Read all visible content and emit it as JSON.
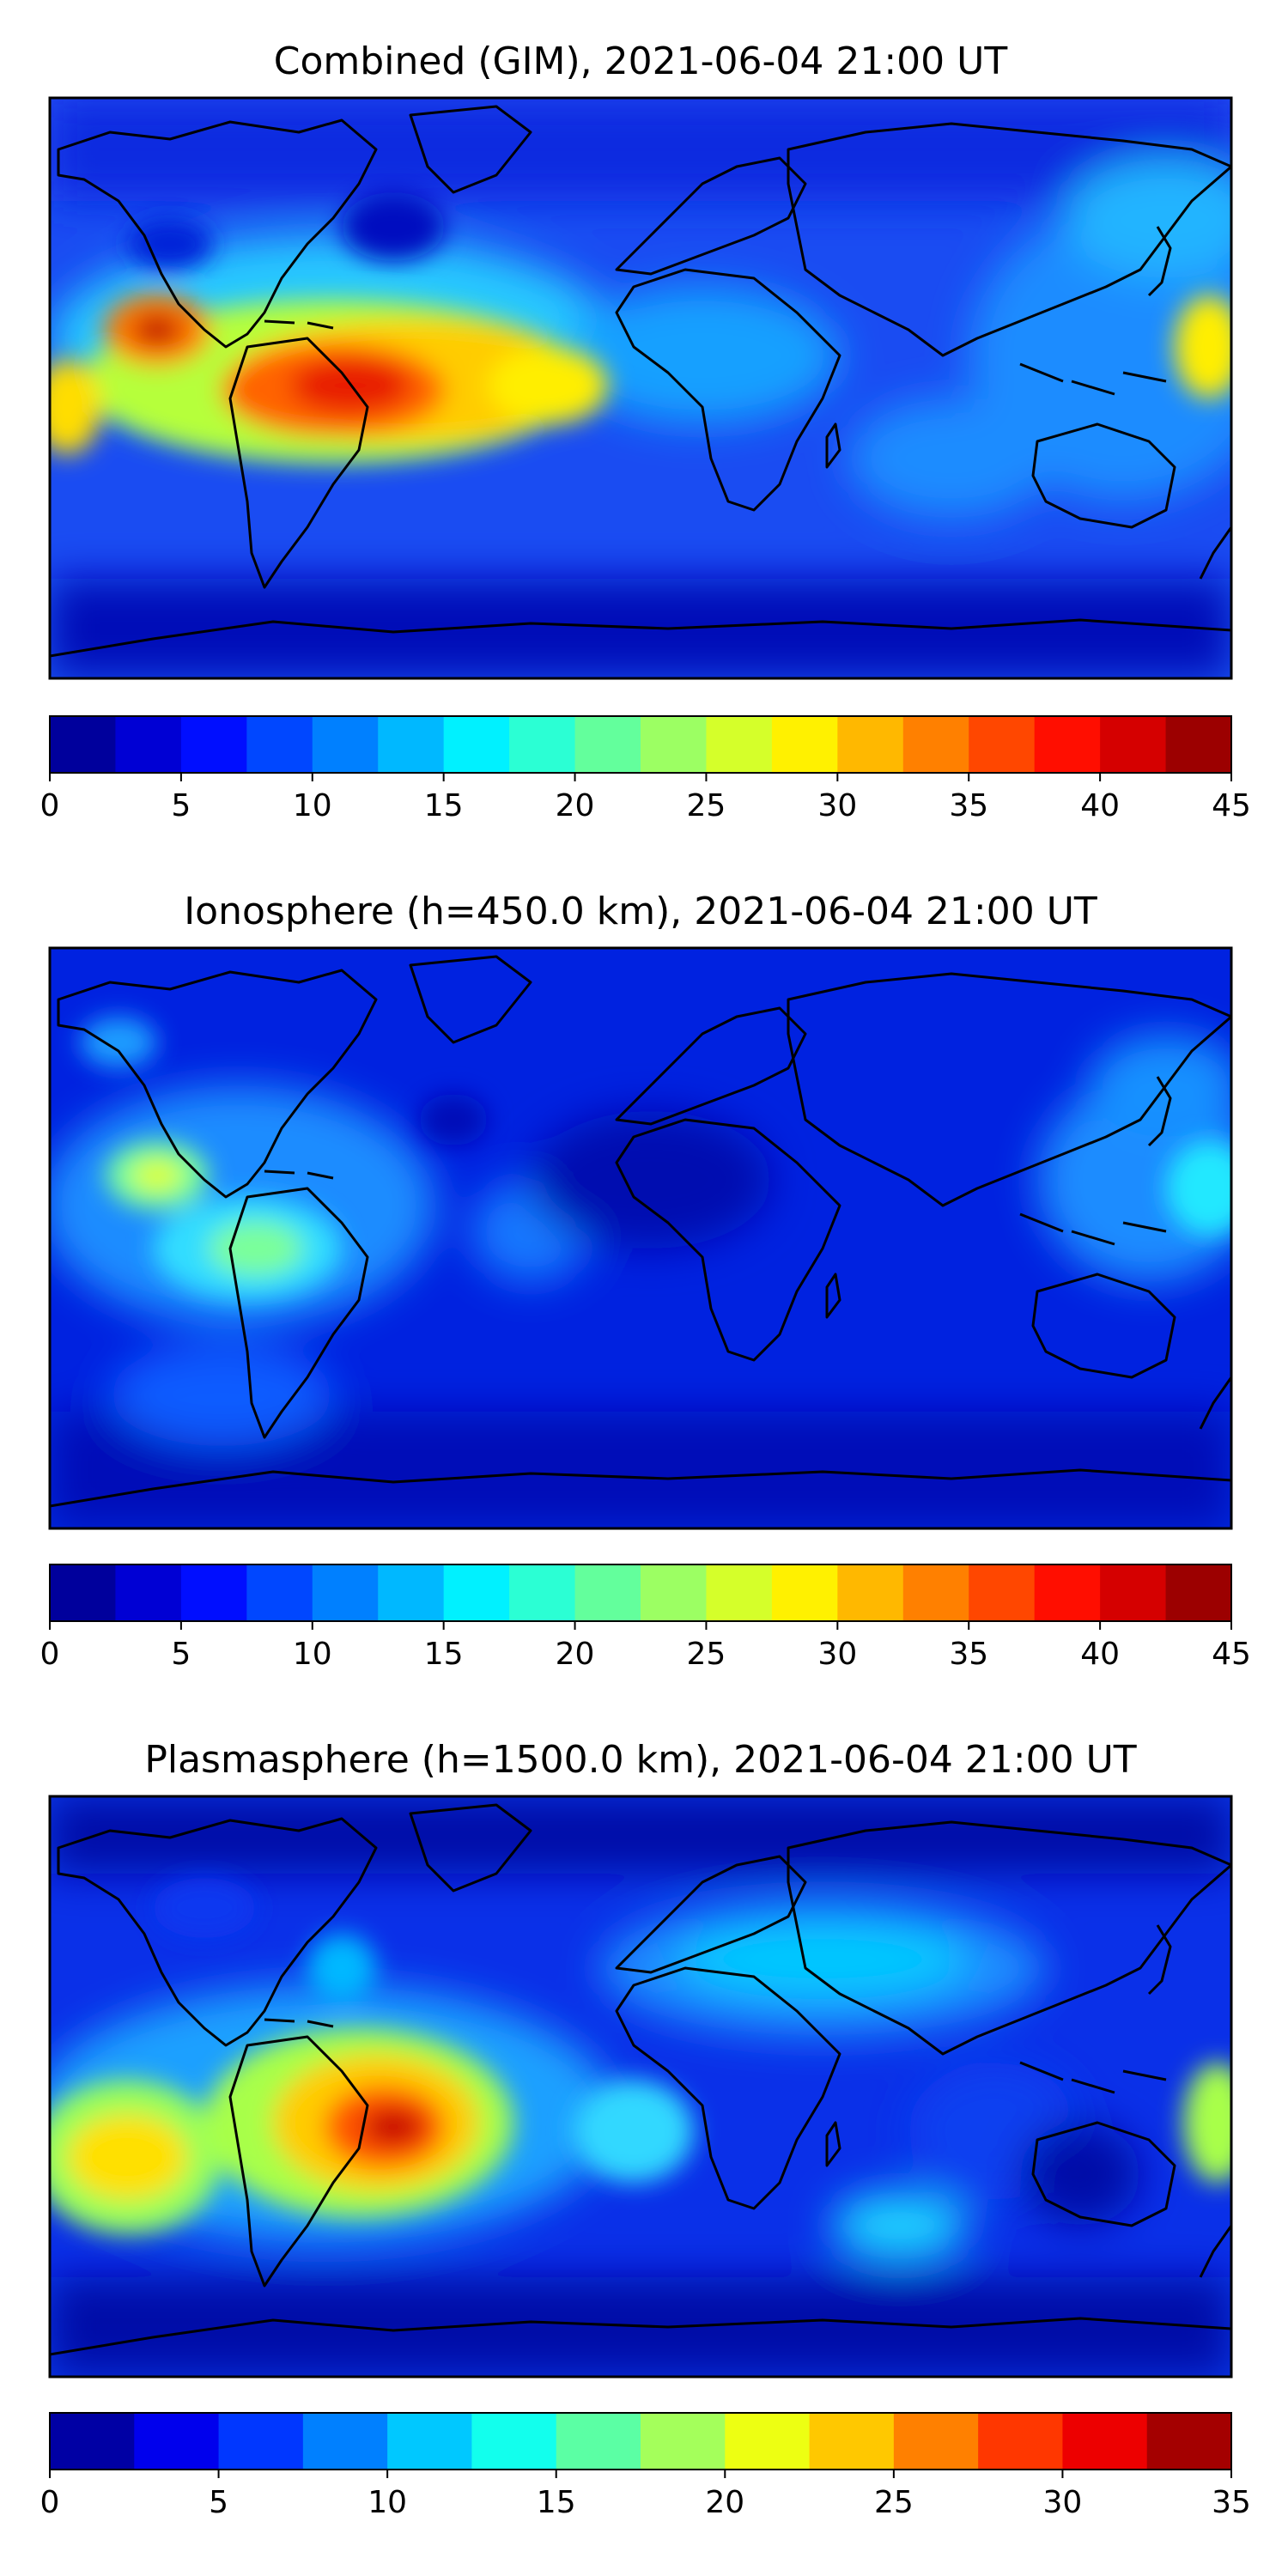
{
  "panels": [
    {
      "title": "Combined (GIM), 2021-06-04 21:00 UT",
      "colorbar": {
        "min": 0,
        "max": 45,
        "step": 2.5,
        "ticks": [
          "0",
          "5",
          "10",
          "15",
          "20",
          "25",
          "30",
          "35",
          "40",
          "45"
        ]
      }
    },
    {
      "title": "Ionosphere  (h=450.0 km), 2021-06-04 21:00 UT",
      "colorbar": {
        "min": 0,
        "max": 45,
        "step": 2.5,
        "ticks": [
          "0",
          "5",
          "10",
          "15",
          "20",
          "25",
          "30",
          "35",
          "40",
          "45"
        ]
      }
    },
    {
      "title": "Plasmasphere (h=1500.0 km), 2021-06-04 21:00 UT",
      "colorbar": {
        "min": 0,
        "max": 35,
        "step": 2.5,
        "ticks": [
          "0",
          "5",
          "10",
          "15",
          "20",
          "25",
          "30",
          "35"
        ]
      }
    }
  ],
  "colors": {
    "colormap": "jet",
    "background": "#0000b0",
    "coastline": "#000000",
    "frame": "#000000"
  }
}
